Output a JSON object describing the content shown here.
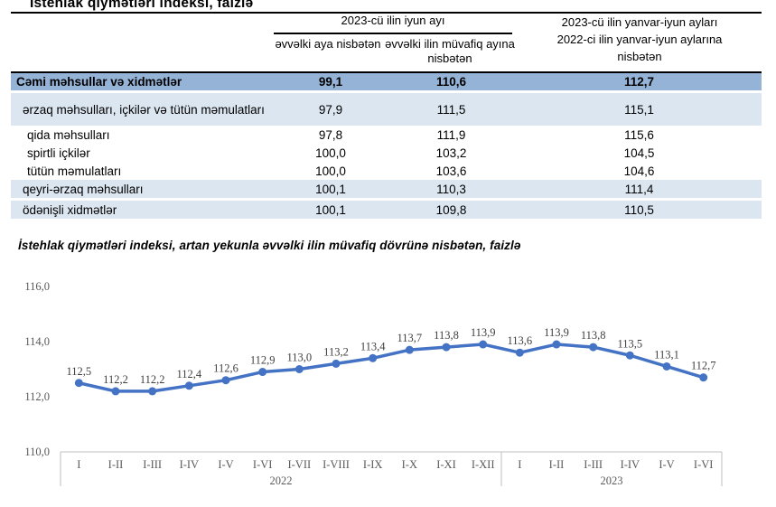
{
  "accent_colors": {
    "table_total_row_bg": "#95B3D7",
    "table_alt_row_bg": "#DCE6F1",
    "chart_line": "#4472C4",
    "axis_text_color": "#595959",
    "data_label_color": "#404040",
    "axis_line_color": "#BFBFBF",
    "border_dark": "#000000"
  },
  "table_section": {
    "title": "İstehlak qiymətləri indeksi, faizlə",
    "col_group_1": {
      "title": "2023-cü ilin iyun ayı",
      "sub_columns": [
        "əvvəlki aya nisbətən",
        "əvvəlki ilin müvafiq ayına nisbətən"
      ]
    },
    "col_group_2": {
      "title": "2023-cü ilin yanvar-iyun ayları\n2022-ci ilin yanvar-iyun aylarına\nnisbətən"
    },
    "rows": [
      {
        "label": "Cəmi məhsullar və xidmətlər",
        "values": [
          "99,1",
          "110,6",
          "112,7"
        ],
        "style": "total",
        "indent": 0,
        "hang": false,
        "gap_before": false
      },
      {
        "label": "ərzaq məhsulları, içkilər və tütün məmulatları",
        "values": [
          "97,9",
          "111,5",
          "115,1"
        ],
        "style": "alt",
        "indent": 1,
        "hang": true,
        "gap_before": true
      },
      {
        "label": "qida məhsulları",
        "values": [
          "97,8",
          "111,9",
          "115,6"
        ],
        "style": "plain",
        "indent": 2,
        "hang": false,
        "gap_before": false
      },
      {
        "label": "spirtli içkilər",
        "values": [
          "100,0",
          "103,2",
          "104,5"
        ],
        "style": "plain",
        "indent": 2,
        "hang": false,
        "gap_before": false
      },
      {
        "label": "tütün məmulatları",
        "values": [
          "100,0",
          "103,6",
          "104,6"
        ],
        "style": "plain",
        "indent": 2,
        "hang": false,
        "gap_before": false
      },
      {
        "label": "qeyri-ərzaq məhsulları",
        "values": [
          "100,1",
          "110,3",
          "111,4"
        ],
        "style": "alt",
        "indent": 1,
        "hang": false,
        "gap_before": false
      },
      {
        "label": "ödənişli xidmətlər",
        "values": [
          "100,1",
          "109,8",
          "110,5"
        ],
        "style": "alt",
        "indent": 1,
        "hang": false,
        "gap_before": true
      }
    ]
  },
  "chart_section": {
    "title": "İstehlak qiymətləri indeksi, artan yekunla əvvəlki ilin müvafiq dövrünə nisbətən, faizlə"
  },
  "chart_data": {
    "type": "line",
    "title": "İstehlak qiymətləri indeksi, artan yekunla əvvəlki ilin müvafiq dövrünə nisbətən, faizlə",
    "categories": [
      "I",
      "I-II",
      "I-III",
      "I-IV",
      "I-V",
      "I-VI",
      "I-VII",
      "I-VIII",
      "I-IX",
      "I-X",
      "I-XI",
      "I-XII",
      "I",
      "I-II",
      "I-III",
      "I-IV",
      "I-V",
      "I-VI"
    ],
    "year_groups": [
      {
        "label": "2022",
        "count": 12
      },
      {
        "label": "2023",
        "count": 6
      }
    ],
    "values": [
      112.5,
      112.2,
      112.2,
      112.4,
      112.6,
      112.9,
      113.0,
      113.2,
      113.4,
      113.7,
      113.8,
      113.9,
      113.6,
      113.9,
      113.8,
      113.5,
      113.1,
      112.7
    ],
    "y_ticks": [
      "116,0",
      "114,0",
      "112,0",
      "110,0"
    ],
    "y_tick_values": [
      116,
      114,
      112,
      110
    ],
    "ylim": [
      110,
      116
    ],
    "xlabel": "",
    "ylabel": "",
    "grid": false,
    "legend": false,
    "data_labels": true,
    "decimal_separator": ","
  }
}
